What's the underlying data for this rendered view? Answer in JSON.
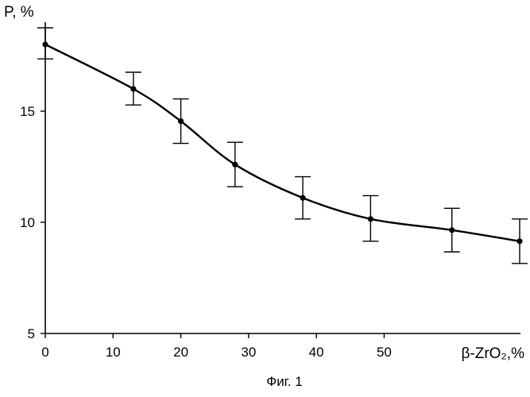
{
  "chart_data": {
    "type": "line",
    "title": "",
    "caption": "Фиг. 1",
    "xlabel": "β-ZrO₂,%",
    "ylabel": "P, %",
    "xlim": [
      0,
      70
    ],
    "ylim": [
      5,
      19
    ],
    "x_ticks": [
      0,
      10,
      20,
      30,
      40,
      50
    ],
    "x_tick_labels": [
      "0",
      "10",
      "20",
      "30",
      "40",
      "50"
    ],
    "y_ticks": [
      5,
      10,
      15
    ],
    "y_tick_labels": [
      "5",
      "10",
      "15"
    ],
    "grid": false,
    "legend": "none",
    "series": [
      {
        "x": [
          0,
          13,
          20,
          28,
          38,
          48,
          60,
          70
        ],
        "y": [
          18.0,
          16.0,
          14.55,
          12.6,
          11.1,
          10.15,
          9.65,
          9.15
        ],
        "error_low": [
          0.65,
          0.72,
          1.0,
          1.0,
          0.95,
          1.0,
          0.98,
          1.0
        ],
        "error_high": [
          0.75,
          0.75,
          1.0,
          1.0,
          0.95,
          1.05,
          0.98,
          1.0
        ]
      }
    ]
  }
}
